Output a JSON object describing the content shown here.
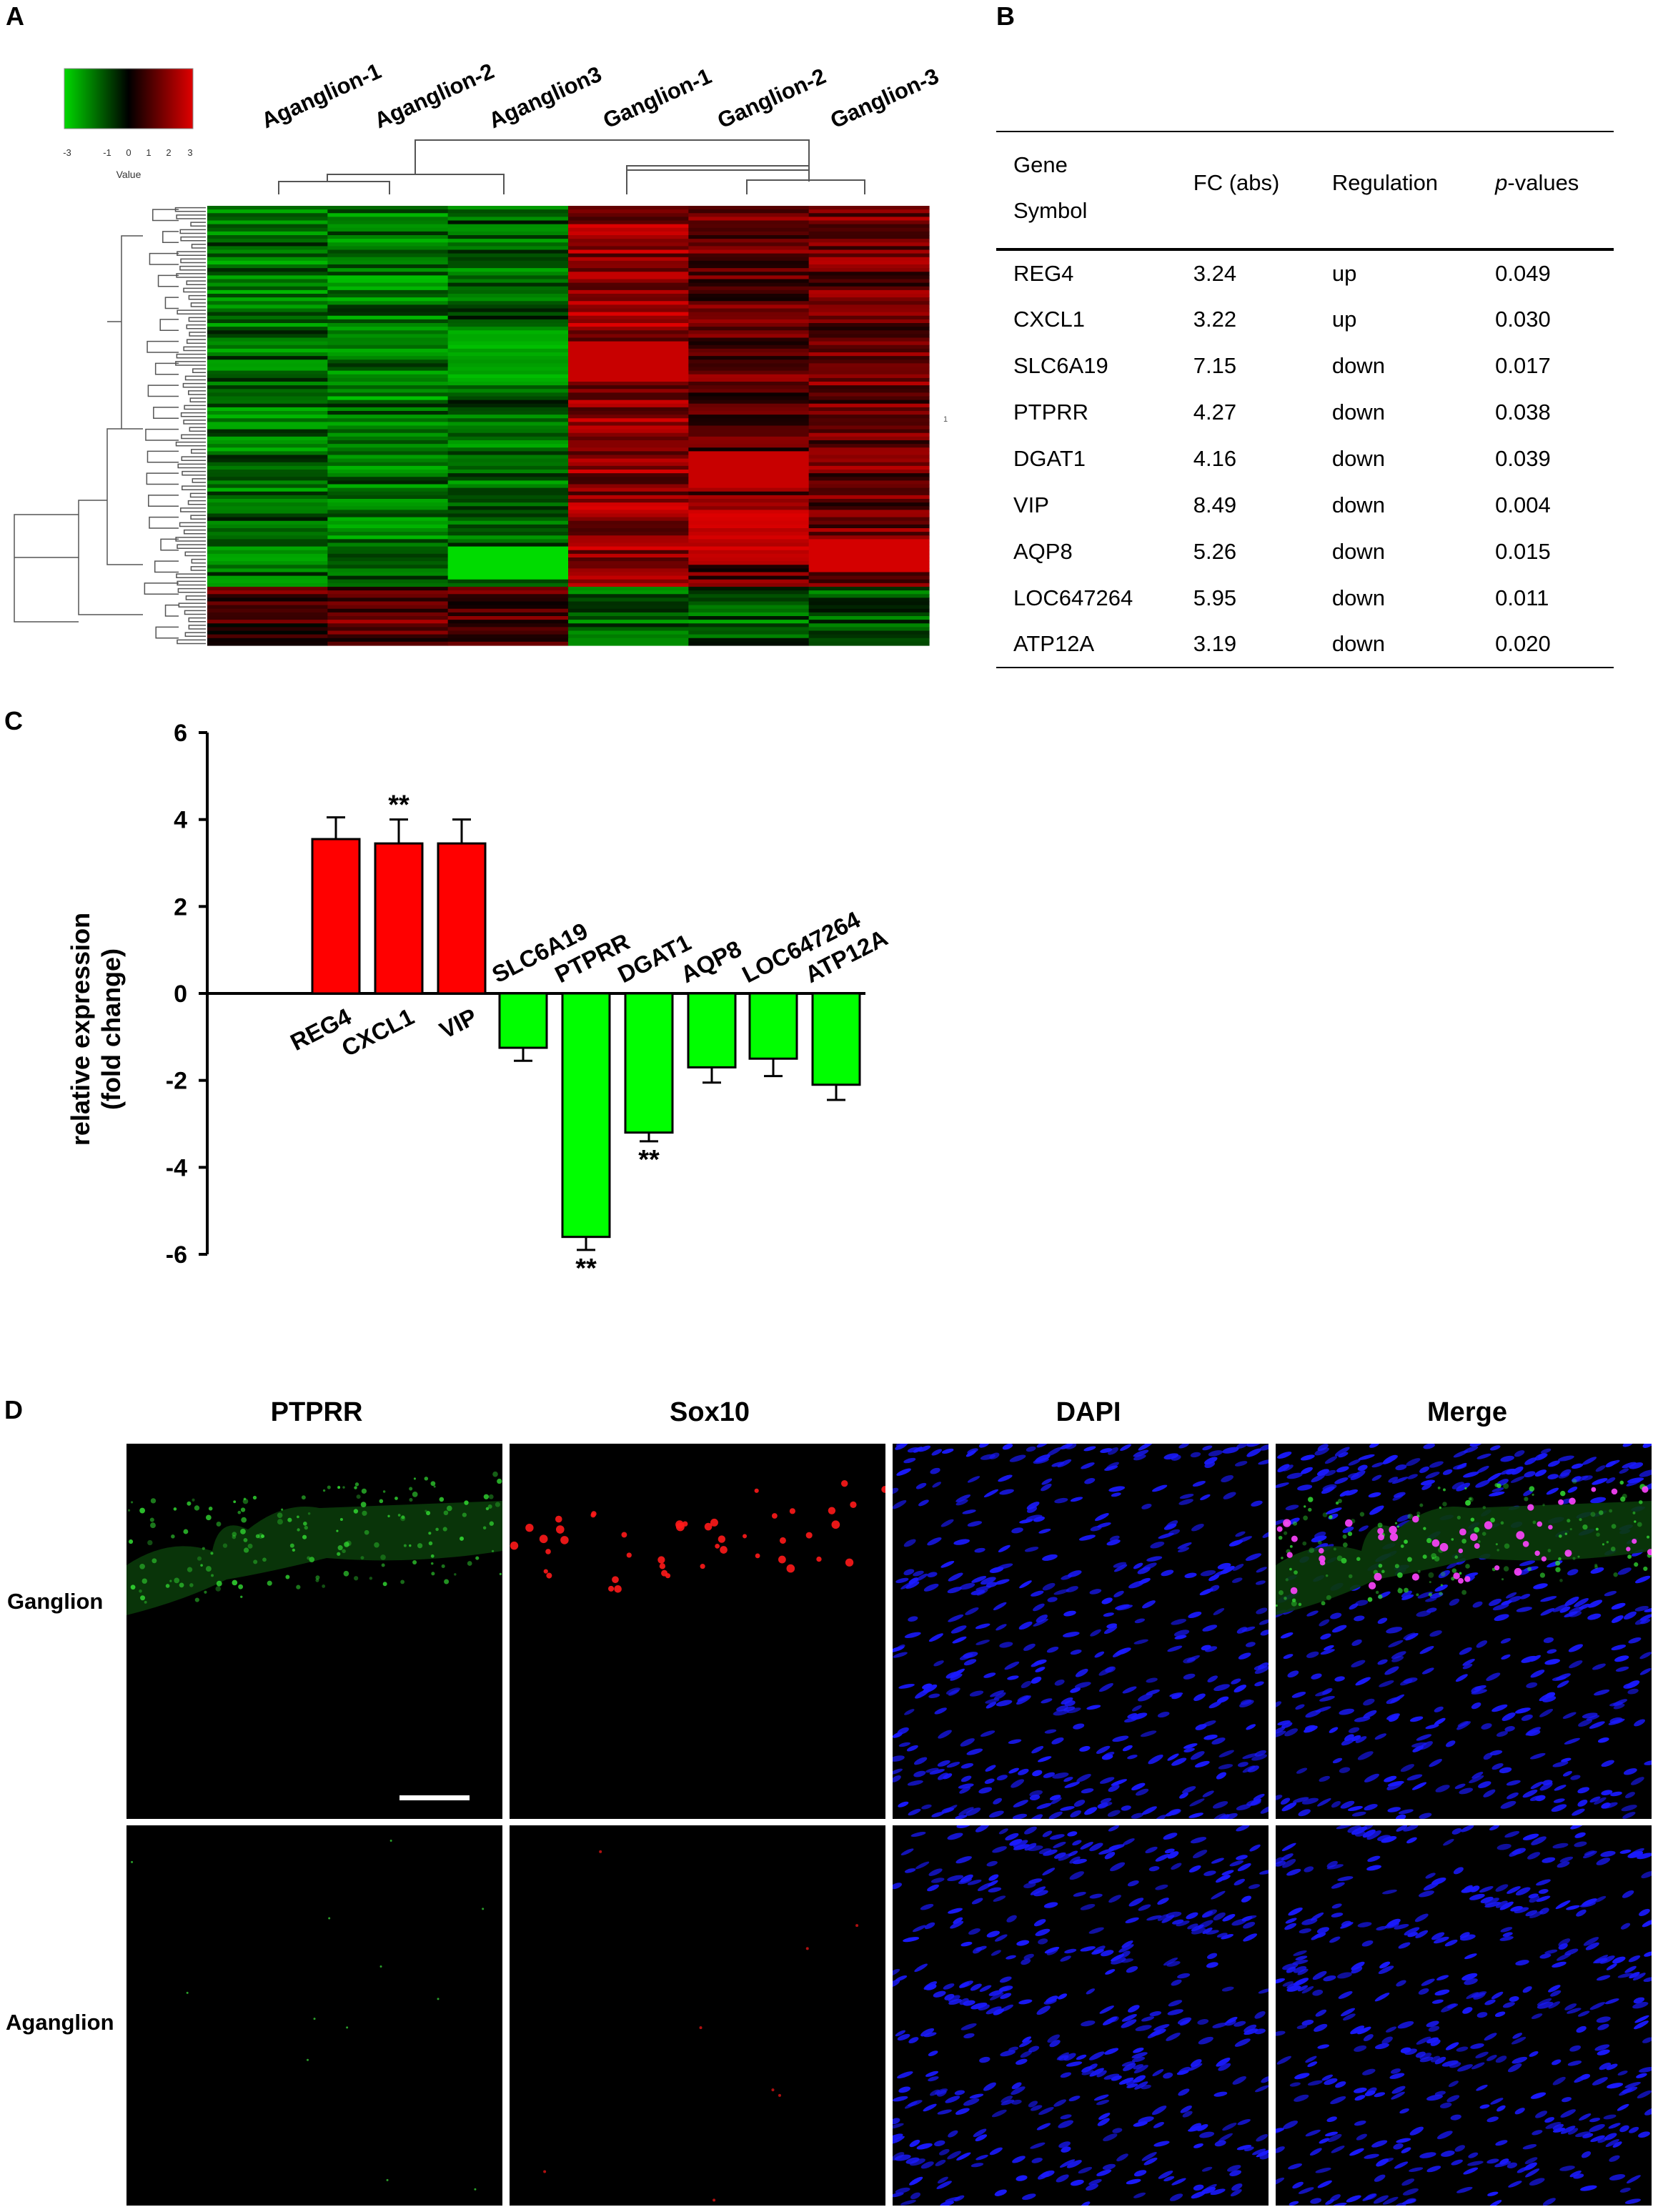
{
  "panels": {
    "a": "A",
    "b": "B",
    "c": "C",
    "d": "D"
  },
  "heatmap": {
    "columns": [
      "Aganglion-1",
      "Aganglion-2",
      "Aganglion3",
      "Ganglion-1",
      "Ganglion-2",
      "Ganglion-3"
    ],
    "colorkey": {
      "label": "Value",
      "ticks": [
        "-3",
        "-1",
        "0",
        "1",
        "2",
        "3"
      ],
      "colors": {
        "low": "#00d800",
        "mid": "#000000",
        "high": "#e00000"
      }
    },
    "side_mark": "1"
  },
  "table": {
    "headers": {
      "gene": "Gene",
      "symbol": "Symbol",
      "fc": "FC (abs)",
      "regulation": "Regulation",
      "p_italic": "p",
      "p_rest": "-values"
    },
    "rows": [
      {
        "gene": "REG4",
        "fc": "3.24",
        "regulation": "up",
        "p": "0.049"
      },
      {
        "gene": "CXCL1",
        "fc": "3.22",
        "regulation": "up",
        "p": "0.030"
      },
      {
        "gene": "SLC6A19",
        "fc": "7.15",
        "regulation": "down",
        "p": "0.017"
      },
      {
        "gene": "PTPRR",
        "fc": "4.27",
        "regulation": "down",
        "p": "0.038"
      },
      {
        "gene": "DGAT1",
        "fc": "4.16",
        "regulation": "down",
        "p": "0.039"
      },
      {
        "gene": "VIP",
        "fc": "8.49",
        "regulation": "down",
        "p": "0.004"
      },
      {
        "gene": "AQP8",
        "fc": "5.26",
        "regulation": "down",
        "p": "0.015"
      },
      {
        "gene": "LOC647264",
        "fc": "5.95",
        "regulation": "down",
        "p": "0.011"
      },
      {
        "gene": "ATP12A",
        "fc": "3.19",
        "regulation": "down",
        "p": "0.020"
      }
    ]
  },
  "chart_data": {
    "type": "bar",
    "title": "",
    "xlabel": "",
    "ylabel_line1": "relative expression",
    "ylabel_line2": "(fold change)",
    "ylim": [
      -6,
      6
    ],
    "yticks": [
      "6",
      "4",
      "2",
      "0",
      "-2",
      "-4",
      "-6"
    ],
    "categories": [
      "REG4",
      "CXCL1",
      "VIP",
      "SLC6A19",
      "PTPRR",
      "DGAT1",
      "AQP8",
      "LOC647264",
      "ATP12A"
    ],
    "values": [
      3.55,
      3.45,
      3.45,
      -1.25,
      -5.6,
      -3.2,
      -1.7,
      -1.5,
      -2.1
    ],
    "errors": [
      0.5,
      0.55,
      0.55,
      0.3,
      0.3,
      0.2,
      0.35,
      0.4,
      0.35
    ],
    "significance": [
      "",
      "**",
      "",
      "",
      "**",
      "**",
      "",
      "",
      ""
    ],
    "colors": {
      "up": "#ff0000",
      "down": "#00ff00"
    }
  },
  "microscopy": {
    "columns": [
      "PTPRR",
      "Sox10",
      "DAPI",
      "Merge"
    ],
    "rows": [
      "Ganglion",
      "Aganglion"
    ]
  }
}
